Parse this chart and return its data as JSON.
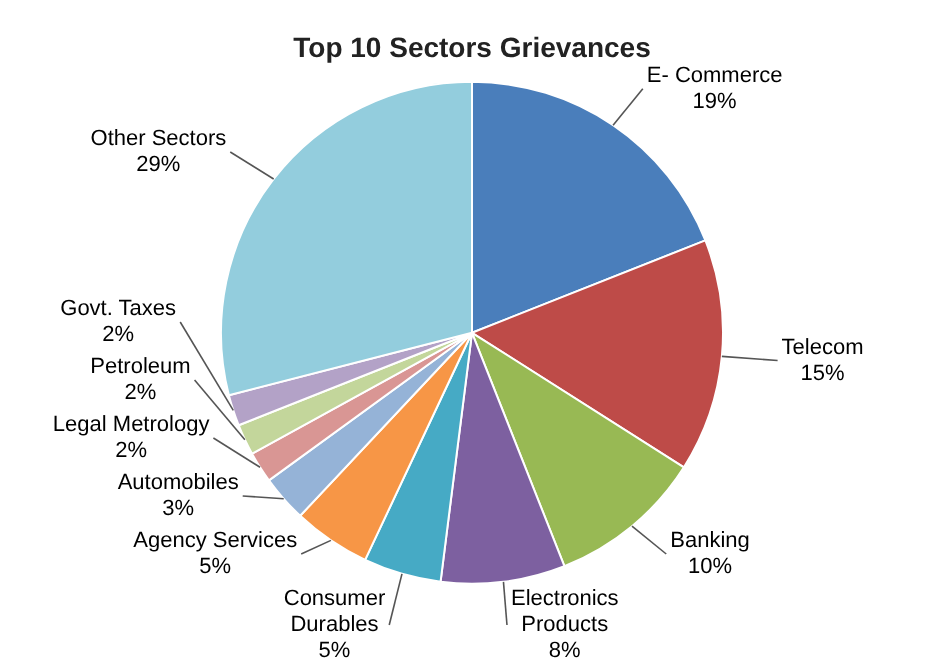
{
  "chart_data": {
    "type": "pie",
    "title": "Top 10 Sectors Grievances",
    "categories": [
      "E- Commerce",
      "Telecom",
      "Banking",
      "Electronics Products",
      "Consumer Durables",
      "Agency Services",
      "Automobiles",
      "Legal Metrology",
      "Petroleum",
      "Govt. Taxes",
      "Other Sectors"
    ],
    "values": [
      19,
      15,
      10,
      8,
      5,
      5,
      3,
      2,
      2,
      2,
      29
    ],
    "value_labels": [
      "19%",
      "15%",
      "10%",
      "8%",
      "5%",
      "5%",
      "3%",
      "2%",
      "2%",
      "2%",
      "29%"
    ],
    "colors": [
      "#4a7ebb",
      "#be4b48",
      "#98b954",
      "#7d60a0",
      "#46aac5",
      "#f79646",
      "#95b3d7",
      "#d99694",
      "#c3d69b",
      "#b3a2c7",
      "#93cddd"
    ],
    "legend": false
  }
}
